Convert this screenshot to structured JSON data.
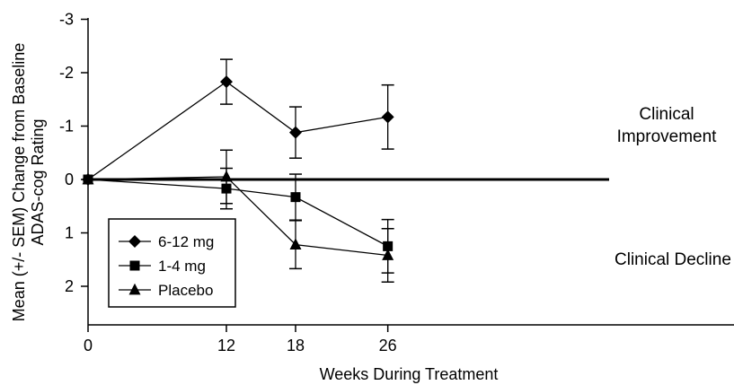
{
  "chart_data": {
    "type": "line",
    "title": "",
    "xlabel": "Weeks During Treatment",
    "ylabel_lines": [
      "Mean (+/- SEM) Change from Baseline",
      "ADAS-cog Rating"
    ],
    "x_ticks": [
      0,
      12,
      18,
      26
    ],
    "y_ticks": [
      -3,
      -2,
      -1,
      0,
      1,
      2
    ],
    "y_tick_labels": [
      "-3",
      "-2",
      "-1",
      "0",
      "1",
      "2"
    ],
    "x_range": [
      0,
      36
    ],
    "y_range": [
      -3,
      2.7
    ],
    "y_inverted": true,
    "zero_line": true,
    "grid": false,
    "legend_position": "bottom-left",
    "annotations": {
      "improvement": [
        "Clinical",
        "Improvement"
      ],
      "decline": "Clinical Decline"
    },
    "series": [
      {
        "name": "6-12 mg",
        "marker": "diamond",
        "x": [
          0,
          12,
          18,
          26
        ],
        "y": [
          0,
          -1.83,
          -0.88,
          -1.17
        ],
        "err": [
          0,
          0.42,
          0.48,
          0.6
        ]
      },
      {
        "name": "1-4 mg",
        "marker": "square",
        "x": [
          0,
          12,
          18,
          26
        ],
        "y": [
          0,
          0.17,
          0.33,
          1.25
        ],
        "err": [
          0,
          0.38,
          0.43,
          0.5
        ]
      },
      {
        "name": "Placebo",
        "marker": "triangle",
        "x": [
          0,
          12,
          18,
          26
        ],
        "y": [
          0,
          -0.05,
          1.22,
          1.42
        ],
        "err": [
          0,
          0.5,
          0.45,
          0.5
        ]
      }
    ]
  }
}
